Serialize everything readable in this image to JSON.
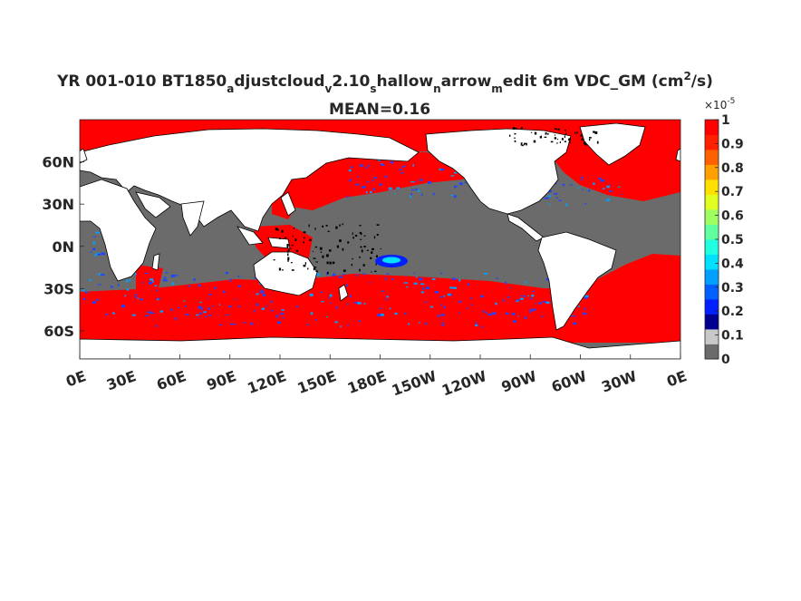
{
  "chart_data": {
    "type": "heatmap",
    "title": {
      "prefix": "YR 001-010 BT1850",
      "parts": [
        {
          "text": "a",
          "sub": true
        },
        {
          "text": "djustcloud",
          "sub": false
        },
        {
          "text": "v",
          "sub": true
        },
        {
          "text": "2.10",
          "sub": false
        },
        {
          "text": "s",
          "sub": true
        },
        {
          "text": "hallow",
          "sub": false
        },
        {
          "text": "n",
          "sub": true
        },
        {
          "text": "arrow",
          "sub": false
        },
        {
          "text": "m",
          "sub": true
        },
        {
          "text": "edit 6m VDC_GM (cm",
          "sub": false
        },
        {
          "text": "2",
          "sup": true
        },
        {
          "text": "/s)",
          "sub": false
        }
      ]
    },
    "subtitle": "MEAN=0.16",
    "x_ticks": [
      "0E",
      "30E",
      "60E",
      "90E",
      "120E",
      "150E",
      "180E",
      "150W",
      "120W",
      "90W",
      "60W",
      "30W",
      "0E"
    ],
    "y_ticks": [
      "60N",
      "30N",
      "0N",
      "30S",
      "60S"
    ],
    "y_tick_values": [
      60,
      30,
      0,
      -30,
      -60
    ],
    "x_range": [
      0,
      360
    ],
    "y_range": [
      -80,
      90
    ],
    "colorbar": {
      "multiplier": "×10",
      "exponent": "-5",
      "ticks": [
        "0",
        "0.1",
        "0.2",
        "0.3",
        "0.4",
        "0.5",
        "0.6",
        "0.7",
        "0.8",
        "0.9",
        "1"
      ],
      "range": [
        0,
        1
      ],
      "colors": [
        "#6b6b6b",
        "#c8c8c8",
        "#00008f",
        "#0020ff",
        "#0060ff",
        "#00a0ff",
        "#00e0ff",
        "#20ffe0",
        "#60ffa0",
        "#a0ff60",
        "#e0ff20",
        "#ffe000",
        "#ffa000",
        "#ff6000",
        "#ff2000",
        "#ff0000"
      ]
    },
    "colors": {
      "ocean_low": "#6b6b6b",
      "ocean_high": "#ff0000",
      "land": "#ffffff",
      "speckle_blue": "#1e46ff"
    }
  }
}
